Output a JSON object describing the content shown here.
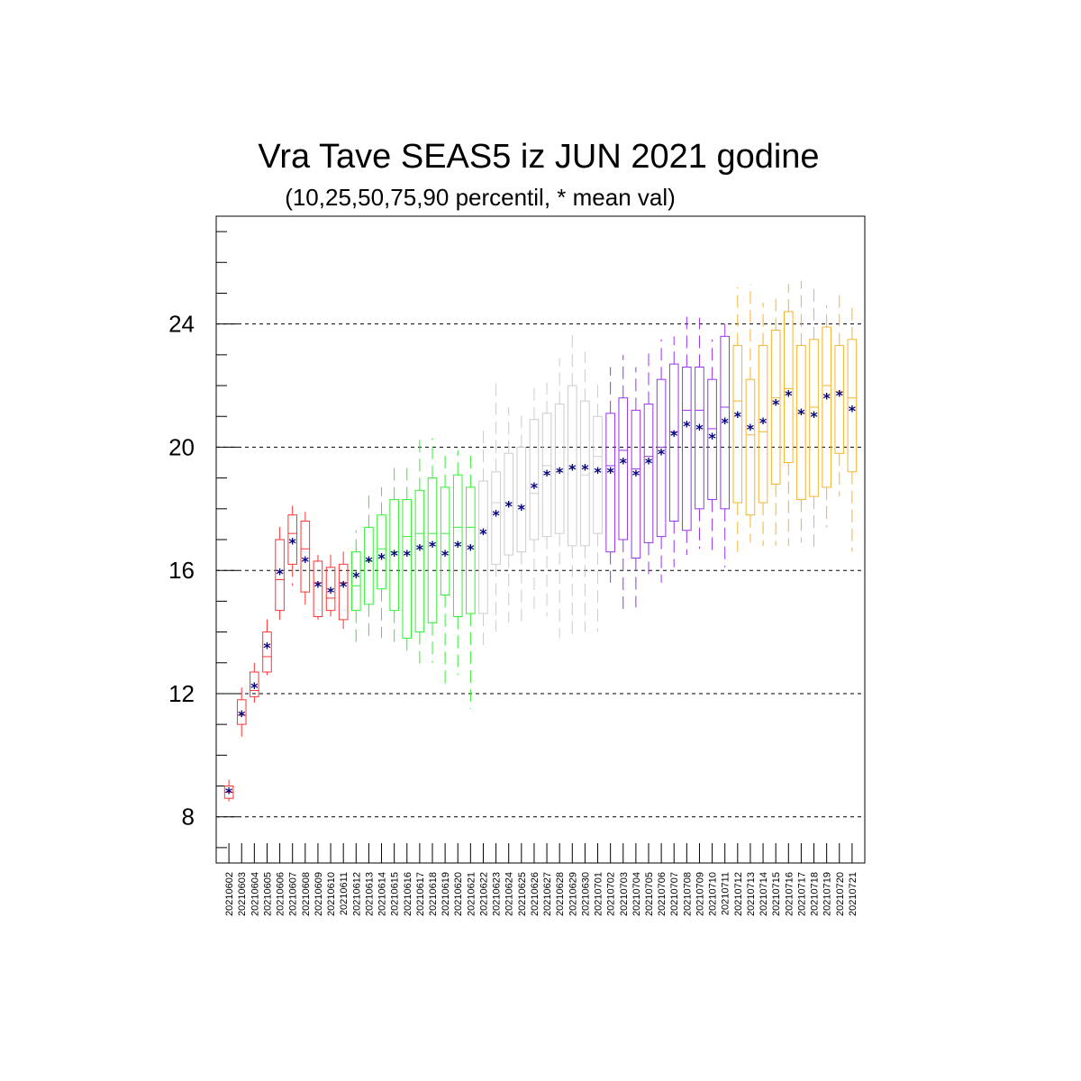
{
  "chart_data": {
    "type": "box",
    "title": "Vra Tave SEAS5 iz JUN 2021 godine",
    "subtitle": "(10,25,50,75,90 percentil, * mean val)",
    "xlabel": "",
    "ylabel": "",
    "ylim": [
      6.5,
      27.5
    ],
    "yticks": [
      8,
      12,
      16,
      20,
      24
    ],
    "grid_y": true,
    "mean_marker": "*",
    "colors": {
      "mean": "#000080",
      "grid": "#000000",
      "groups": [
        "#ff3333",
        "#33ee33",
        "#cccccc",
        "#9933ee",
        "#f5b330"
      ]
    },
    "categories": [
      "20210602",
      "20210603",
      "20210604",
      "20210605",
      "20210606",
      "20210607",
      "20210608",
      "20210609",
      "20210610",
      "20210611",
      "20210612",
      "20210613",
      "20210614",
      "20210615",
      "20210616",
      "20210617",
      "20210618",
      "20210619",
      "20210620",
      "20210621",
      "20210622",
      "20210623",
      "20210624",
      "20210625",
      "20210626",
      "20210627",
      "20210628",
      "20210629",
      "20210630",
      "20210701",
      "20210702",
      "20210703",
      "20210704",
      "20210705",
      "20210706",
      "20210707",
      "20210708",
      "20210709",
      "20210710",
      "20210711",
      "20210712",
      "20210713",
      "20210714",
      "20210715",
      "20210716",
      "20210717",
      "20210718",
      "20210719",
      "20210720",
      "20210721"
    ],
    "color_group": [
      0,
      0,
      0,
      0,
      0,
      0,
      0,
      0,
      0,
      0,
      1,
      1,
      1,
      1,
      1,
      1,
      1,
      1,
      1,
      1,
      2,
      2,
      2,
      2,
      2,
      2,
      2,
      2,
      2,
      2,
      3,
      3,
      3,
      3,
      3,
      3,
      3,
      3,
      3,
      3,
      4,
      4,
      4,
      4,
      4,
      4,
      4,
      4,
      4,
      4
    ],
    "p10": [
      8.5,
      10.6,
      11.7,
      12.6,
      14.4,
      15.5,
      14.8,
      14.4,
      14.5,
      14.1,
      13.6,
      13.8,
      13.8,
      13.6,
      13.2,
      12.8,
      13.0,
      12.2,
      12.6,
      11.5,
      13.4,
      14.0,
      14.3,
      14.2,
      14.7,
      14.5,
      13.8,
      13.8,
      14.0,
      14.0,
      15.6,
      14.6,
      14.8,
      15.7,
      15.6,
      16.1,
      16.5,
      16.7,
      16.5,
      16.1,
      16.6,
      16.9,
      16.8,
      16.8,
      16.8,
      16.9,
      16.7,
      17.4,
      18.4,
      16.6
    ],
    "p25": [
      8.6,
      11.0,
      11.9,
      12.7,
      14.7,
      16.2,
      15.3,
      14.5,
      14.7,
      14.4,
      14.7,
      14.9,
      15.4,
      14.7,
      13.8,
      14.0,
      14.3,
      15.2,
      14.5,
      14.6,
      14.6,
      16.2,
      16.5,
      16.6,
      17.0,
      17.1,
      17.2,
      16.8,
      16.8,
      17.2,
      16.6,
      17.0,
      16.4,
      16.9,
      17.1,
      17.6,
      17.3,
      18.0,
      18.3,
      18.0,
      18.2,
      17.8,
      18.2,
      18.8,
      19.5,
      18.3,
      18.4,
      18.7,
      19.8,
      19.2
    ],
    "p50": [
      8.8,
      11.3,
      12.1,
      13.2,
      15.7,
      17.2,
      16.7,
      15.6,
      15.1,
      15.6,
      15.5,
      16.3,
      16.7,
      16.6,
      17.1,
      17.2,
      17.2,
      17.2,
      17.4,
      17.4,
      17.2,
      18.2,
      18.2,
      18.1,
      18.5,
      19.4,
      19.2,
      19.3,
      19.1,
      19.7,
      19.4,
      19.9,
      19.3,
      19.7,
      20.0,
      20.5,
      21.2,
      21.2,
      20.6,
      21.3,
      21.5,
      20.4,
      20.5,
      21.6,
      21.9,
      21.1,
      21.3,
      22.0,
      21.8,
      21.6
    ],
    "p75": [
      9.0,
      11.8,
      12.7,
      14.0,
      17.0,
      17.8,
      17.6,
      16.3,
      16.1,
      16.2,
      16.6,
      17.4,
      17.8,
      18.3,
      18.3,
      18.6,
      19.0,
      18.7,
      19.1,
      18.7,
      18.9,
      19.2,
      19.8,
      20.0,
      20.9,
      21.1,
      21.4,
      22.0,
      21.5,
      21.0,
      21.1,
      21.6,
      21.2,
      21.4,
      22.2,
      22.7,
      22.6,
      22.6,
      22.2,
      23.6,
      23.3,
      22.2,
      23.3,
      23.8,
      24.4,
      23.3,
      23.5,
      23.9,
      23.3,
      23.5
    ],
    "p90": [
      9.2,
      12.2,
      13.0,
      14.6,
      17.5,
      18.1,
      17.9,
      16.5,
      16.6,
      16.7,
      17.3,
      18.5,
      18.7,
      19.4,
      19.5,
      20.3,
      20.3,
      19.8,
      19.9,
      19.8,
      20.7,
      22.1,
      21.3,
      21.2,
      22.1,
      22.1,
      22.9,
      23.7,
      23.1,
      22.1,
      22.6,
      23.0,
      22.6,
      23.1,
      23.5,
      23.6,
      24.4,
      24.2,
      23.5,
      24.1,
      25.2,
      25.3,
      24.7,
      25.0,
      25.3,
      25.4,
      25.3,
      24.6,
      25.1,
      24.7
    ],
    "mean": [
      8.8,
      11.3,
      12.2,
      13.5,
      15.9,
      16.9,
      16.3,
      15.5,
      15.3,
      15.5,
      15.8,
      16.3,
      16.4,
      16.5,
      16.5,
      16.7,
      16.8,
      16.5,
      16.8,
      16.7,
      17.2,
      17.8,
      18.1,
      18.0,
      18.7,
      19.1,
      19.2,
      19.3,
      19.3,
      19.2,
      19.2,
      19.5,
      19.1,
      19.5,
      19.8,
      20.4,
      20.7,
      20.6,
      20.3,
      20.8,
      21.0,
      20.6,
      20.8,
      21.4,
      21.7,
      21.1,
      21.0,
      21.6,
      21.7,
      21.2
    ]
  }
}
